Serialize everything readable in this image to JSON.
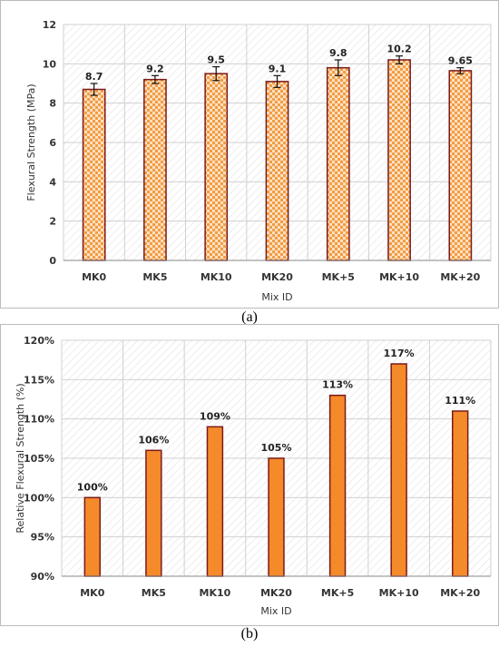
{
  "chart_data": [
    {
      "type": "bar",
      "title": "",
      "xlabel": "Mix ID",
      "ylabel": "Flexural Strength (MPa)",
      "ylim": [
        0,
        12
      ],
      "yticks": [
        "0",
        "2",
        "4",
        "6",
        "8",
        "10",
        "12"
      ],
      "grid": true,
      "categories": [
        "MK0",
        "MK5",
        "MK10",
        "MK20",
        "MK+5",
        "MK+10",
        "MK+20"
      ],
      "values": [
        8.7,
        9.2,
        9.5,
        9.1,
        9.8,
        10.2,
        9.65
      ],
      "errors": [
        0.3,
        0.2,
        0.35,
        0.3,
        0.4,
        0.2,
        0.15
      ],
      "value_labels": [
        "8.7",
        "9.2",
        "9.5",
        "9.1",
        "9.8",
        "10.2",
        "9.65"
      ],
      "bar_style": "dotted pattern, orange fill, dark red outline",
      "caption": "(a)"
    },
    {
      "type": "bar",
      "title": "",
      "xlabel": "Mix ID",
      "ylabel": "Relative Flexural Strength (%)",
      "ylim": [
        90,
        120
      ],
      "yticks": [
        "90%",
        "95%",
        "100%",
        "105%",
        "110%",
        "115%",
        "120%"
      ],
      "grid": true,
      "categories": [
        "MK0",
        "MK5",
        "MK10",
        "MK20",
        "MK+5",
        "MK+10",
        "MK+20"
      ],
      "values": [
        100,
        106,
        109,
        105,
        113,
        117,
        111
      ],
      "value_labels": [
        "100%",
        "106%",
        "109%",
        "105%",
        "113%",
        "117%",
        "111%"
      ],
      "bar_style": "solid orange fill, dark red outline",
      "caption": "(b)"
    }
  ],
  "colors": {
    "bar_fill": "#F58A2A",
    "bar_outline": "#7B1A1A",
    "dot_fill": "#F29A3E",
    "dot_background": "#FCE3C8",
    "hatch": "#dddddd",
    "axis_text": "#333333",
    "label_text": "#222222"
  }
}
